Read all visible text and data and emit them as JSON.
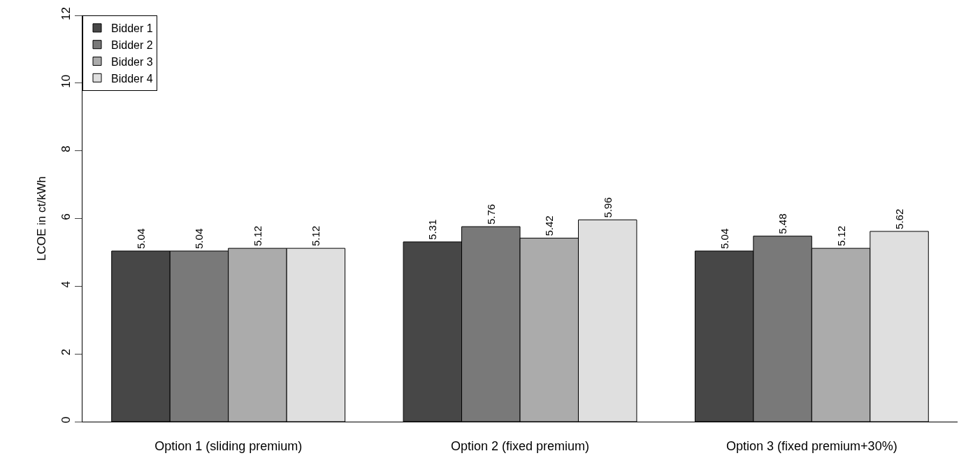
{
  "chart_data": {
    "type": "bar",
    "ylabel": "LCOE in ct/kWh",
    "categories": [
      "Option 1 (sliding premium)",
      "Option 2 (fixed premium)",
      "Option 3 (fixed premium+30%)"
    ],
    "series": [
      {
        "name": "Bidder 1",
        "color": "#474747",
        "values": [
          5.04,
          5.31,
          5.04
        ]
      },
      {
        "name": "Bidder 2",
        "color": "#797979",
        "values": [
          5.04,
          5.76,
          5.48
        ]
      },
      {
        "name": "Bidder 3",
        "color": "#ababab",
        "values": [
          5.12,
          5.42,
          5.12
        ]
      },
      {
        "name": "Bidder 4",
        "color": "#dfdfdf",
        "values": [
          5.12,
          5.96,
          5.62
        ]
      }
    ],
    "ylim": [
      0,
      12
    ],
    "yticks": [
      0,
      2,
      4,
      6,
      8,
      10,
      12
    ],
    "data_labels": true,
    "legend": "top left"
  }
}
